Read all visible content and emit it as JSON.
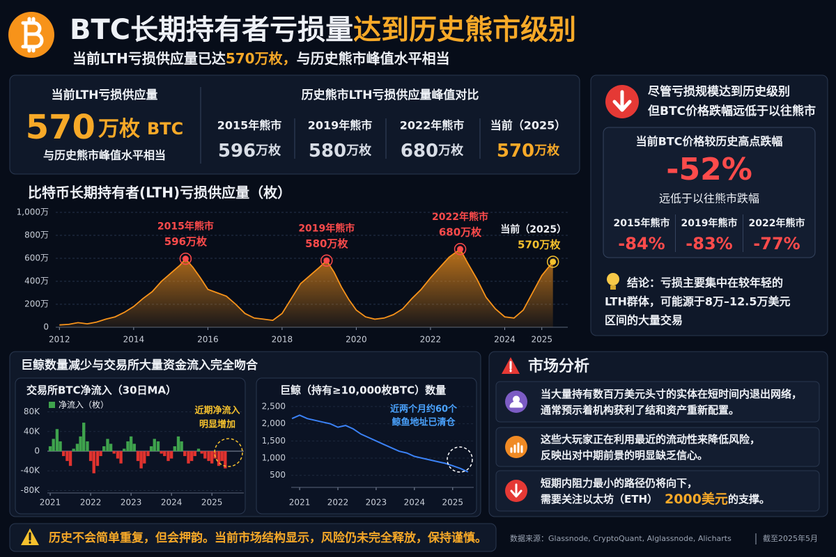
{
  "header": {
    "title_main": "BTC长期持有者亏损量",
    "title_highlight": "达到历史熊市级别",
    "subtitle_parts": [
      "当前LTH亏损供应量已达",
      "570万枚，",
      "与历史熊市峰值水平相当"
    ]
  },
  "summary": {
    "current": {
      "label": "当前LTH亏损供应量",
      "value": "570",
      "unit": "万枚",
      "asset": "BTC",
      "note": "与历史熊市峰值水平相当"
    },
    "comparison": {
      "title": "历史熊市LTH亏损供应量峰值对比",
      "items": [
        {
          "label": "2015年熊市",
          "value": "596",
          "unit": "万枚"
        },
        {
          "label": "2019年熊市",
          "value": "580",
          "unit": "万枚"
        },
        {
          "label": "2022年熊市",
          "value": "680",
          "unit": "万枚"
        },
        {
          "label": "当前（2025）",
          "value": "570",
          "unit": "万枚"
        }
      ]
    }
  },
  "chart_data": [
    {
      "type": "area",
      "title": "比特币长期持有者(LTH)亏损供应量（枚）",
      "color": "#f7931a",
      "x": [
        2012,
        2012.25,
        2012.5,
        2012.75,
        2013,
        2013.25,
        2013.5,
        2013.75,
        2014,
        2014.25,
        2014.5,
        2014.75,
        2015,
        2015.25,
        2015.4,
        2015.6,
        2015.8,
        2016,
        2016.25,
        2016.5,
        2016.75,
        2017,
        2017.25,
        2017.5,
        2017.75,
        2018,
        2018.25,
        2018.5,
        2018.75,
        2019,
        2019.2,
        2019.4,
        2019.6,
        2019.8,
        2020,
        2020.25,
        2020.5,
        2020.75,
        2021,
        2021.25,
        2021.5,
        2021.75,
        2022,
        2022.25,
        2022.5,
        2022.8,
        2023,
        2023.25,
        2023.5,
        2023.75,
        2024,
        2024.25,
        2024.5,
        2024.75,
        2025,
        2025.3
      ],
      "values": [
        20,
        25,
        40,
        30,
        45,
        70,
        90,
        130,
        180,
        250,
        310,
        400,
        470,
        540,
        596,
        520,
        430,
        330,
        300,
        270,
        200,
        120,
        80,
        70,
        60,
        120,
        250,
        380,
        450,
        520,
        580,
        480,
        350,
        240,
        150,
        90,
        70,
        80,
        110,
        160,
        250,
        330,
        430,
        520,
        610,
        680,
        560,
        420,
        260,
        160,
        90,
        80,
        150,
        300,
        450,
        570
      ],
      "xlim": [
        2011.9,
        2025.7
      ],
      "xticks": [
        2012,
        2014,
        2016,
        2018,
        2020,
        2022,
        2024,
        2025
      ],
      "ylim": [
        0,
        1000
      ],
      "yticks": [
        0,
        {
          "value": 200,
          "label": "200万"
        },
        {
          "value": 400,
          "label": "400万"
        },
        {
          "value": 600,
          "label": "600万"
        },
        {
          "value": 800,
          "label": "800万"
        },
        {
          "value": 1000,
          "label": "1,000万"
        }
      ],
      "grid": true,
      "annotations": [
        {
          "x": 2015.4,
          "y": 596,
          "text": "2015年熊市",
          "label": "596万枚"
        },
        {
          "x": 2019.2,
          "y": 580,
          "text": "2019年熊市",
          "label": "580万枚"
        },
        {
          "x": 2022.8,
          "y": 680,
          "text": "2022年熊市",
          "label": "680万枚"
        },
        {
          "x": 2025.3,
          "y": 570,
          "text": "当前（2025）",
          "label": "570万枚"
        }
      ]
    },
    {
      "type": "bar",
      "title": "交易所BTC净流入（30日MA）",
      "x": [
        2021,
        2021.08,
        2021.17,
        2021.25,
        2021.33,
        2021.42,
        2021.5,
        2021.58,
        2021.67,
        2021.75,
        2021.83,
        2021.92,
        2022,
        2022.08,
        2022.17,
        2022.25,
        2022.33,
        2022.42,
        2022.5,
        2022.58,
        2022.67,
        2022.75,
        2022.83,
        2022.92,
        2023,
        2023.08,
        2023.17,
        2023.25,
        2023.33,
        2023.42,
        2023.5,
        2023.58,
        2023.67,
        2023.75,
        2023.83,
        2023.92,
        2024,
        2024.08,
        2024.17,
        2024.25,
        2024.33,
        2024.42,
        2024.5,
        2024.58,
        2024.67,
        2024.75,
        2024.83,
        2024.92,
        2025,
        2025.08,
        2025.17,
        2025.25,
        2025.33
      ],
      "series": [
        {
          "name": "净流入（枚）",
          "color": "#3fa34d",
          "negative_color": "#e0332f",
          "values": [
            10000,
            25000,
            45000,
            20000,
            -10000,
            -20000,
            -30000,
            5000,
            15000,
            30000,
            58000,
            20000,
            -20000,
            -45000,
            -30000,
            -10000,
            10000,
            25000,
            15000,
            -5000,
            -15000,
            -25000,
            5000,
            20000,
            30000,
            15000,
            -20000,
            -35000,
            -25000,
            -10000,
            10000,
            25000,
            20000,
            -5000,
            -10000,
            -20000,
            -15000,
            10000,
            30000,
            20000,
            -10000,
            -25000,
            -20000,
            -10000,
            5000,
            -5000,
            -15000,
            -20000,
            -25000,
            -15000,
            -30000,
            -20000,
            -35000
          ]
        }
      ],
      "xlim": [
        2020.93,
        2025.79
      ],
      "xticks": [
        2021,
        2022,
        2023,
        2024,
        2025
      ],
      "ylim": [
        -85000,
        85000
      ],
      "yticks": [
        {
          "value": 80000,
          "label": "80K"
        },
        {
          "value": 40000,
          "label": "40K"
        },
        0,
        {
          "value": -40000,
          "label": "-40K"
        },
        {
          "value": -80000,
          "label": "-80K"
        }
      ],
      "legend": "top-left",
      "annotation": [
        "近期净流入",
        "明显增加"
      ]
    },
    {
      "type": "line",
      "title": "巨鲸（持有≥10,000枚BTC）数量",
      "color": "#3b82f6",
      "x": [
        2020.8,
        2021,
        2021.2,
        2021.4,
        2021.6,
        2021.8,
        2022,
        2022.2,
        2022.4,
        2022.6,
        2022.8,
        2023,
        2023.2,
        2023.4,
        2023.6,
        2023.8,
        2024,
        2024.2,
        2024.4,
        2024.6,
        2024.8,
        2025,
        2025.2,
        2025.4
      ],
      "values": [
        2150,
        2250,
        2150,
        2100,
        2050,
        2000,
        1900,
        1950,
        1850,
        1700,
        1600,
        1500,
        1400,
        1300,
        1200,
        1150,
        1050,
        1000,
        950,
        900,
        850,
        780,
        700,
        600
      ],
      "xlim": [
        2020.78,
        2025.55
      ],
      "xticks": [
        2021,
        2022,
        2023,
        2024,
        2025
      ],
      "ylim": [
        150,
        2620
      ],
      "yticks": [
        500,
        {
          "value": 1000,
          "label": "1,000"
        },
        {
          "value": 1500,
          "label": "1,500"
        },
        {
          "value": 2000,
          "label": "2,000"
        },
        {
          "value": 2500,
          "label": "2,500"
        }
      ],
      "annotation": [
        "近两个月约60个",
        "鲸鱼地址已清仓"
      ]
    }
  ],
  "drawdown": {
    "headline": [
      "尽管亏损规模达到历史级别",
      "但BTC价格跌幅远低于以往熊市"
    ],
    "box_title": "当前BTC价格较历史高点跌幅",
    "current": "-52%",
    "current_note": "远低于以往熊市跌幅",
    "history": [
      {
        "label": "2015年熊市",
        "value": "-84%"
      },
      {
        "label": "2019年熊市",
        "value": "-83%"
      },
      {
        "label": "2022年熊市",
        "value": "-77%"
      }
    ],
    "conclusion": [
      "结论：亏损主要集中在较年轻的",
      "LTH群体，可能源于8万–12.5万美元",
      "区间的大量交易"
    ]
  },
  "bottom_left_title": "巨鲸数量减少与交易所大量资金流入完全吻合",
  "market_analysis": {
    "title": "市场分析",
    "items": [
      [
        [
          "当大量持有数百万美元头寸的实体在短时间内退出网络，"
        ],
        [
          "通常预示着机构获利了结和资产重新配置。"
        ]
      ],
      [
        [
          "这些大玩家正在利用最近的流动性来降低风险，"
        ],
        [
          "反映出对中期前景的明显缺乏信心。"
        ]
      ],
      [
        [
          "短期内阻力最小的路径仍将向下，"
        ],
        [
          "需要关注以太坊（ETH）",
          "2000美元",
          "的支撑。"
        ]
      ]
    ]
  },
  "footer": {
    "warning": "历史不会简单重复，但会押韵。当前市场结构显示，风险仍未完全释放，保持谨慎。",
    "source": "数据来源：Glassnode, CryptoQuant, Alglassnode, Alicharts",
    "date": "截至2025年5月"
  }
}
